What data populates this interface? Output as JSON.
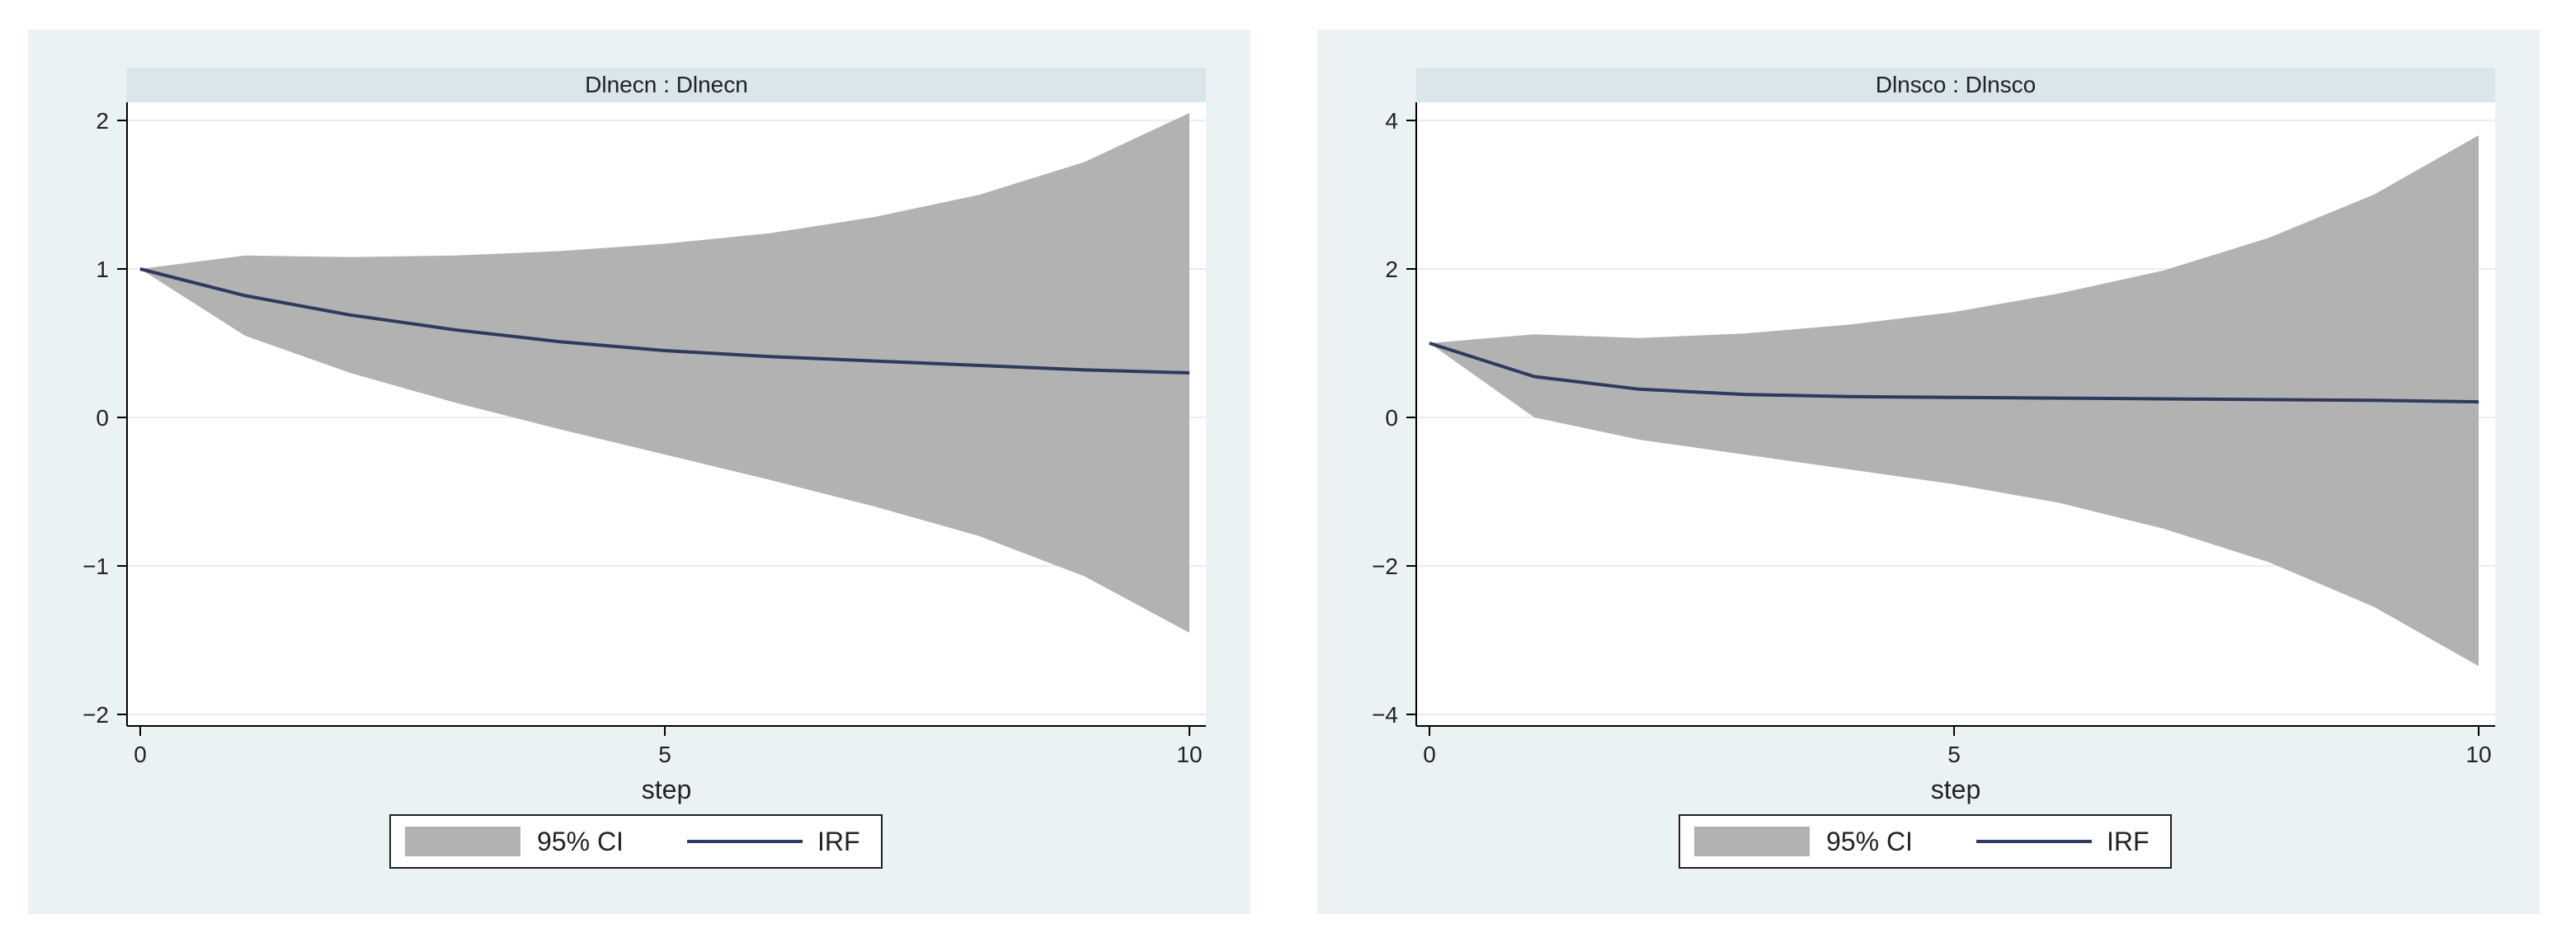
{
  "chart_data": [
    {
      "type": "area",
      "title": "Dlnecn : Dlnecn",
      "xlabel": "step",
      "ylabel": "",
      "xlim": [
        0,
        10
      ],
      "ylim": [
        -2,
        2
      ],
      "x_ticks": [
        "0",
        "5",
        "10"
      ],
      "y_ticks": [
        "2",
        "1",
        "0",
        "−1",
        "−2"
      ],
      "x": [
        0,
        1,
        2,
        3,
        4,
        5,
        6,
        7,
        8,
        9,
        10
      ],
      "series": [
        {
          "name": "95% CI",
          "kind": "band",
          "lower": [
            1.0,
            0.55,
            0.3,
            0.1,
            -0.08,
            -0.25,
            -0.42,
            -0.6,
            -0.8,
            -1.07,
            -1.45
          ],
          "upper": [
            1.0,
            1.09,
            1.08,
            1.09,
            1.12,
            1.17,
            1.24,
            1.35,
            1.5,
            1.72,
            2.05
          ]
        },
        {
          "name": "IRF",
          "kind": "line",
          "values": [
            1.0,
            0.82,
            0.69,
            0.59,
            0.51,
            0.45,
            0.41,
            0.38,
            0.35,
            0.32,
            0.3
          ]
        }
      ],
      "legend": {
        "position": "bottom",
        "items": [
          "95% CI",
          "IRF"
        ]
      },
      "grid": true
    },
    {
      "type": "area",
      "title": "Dlnsco : Dlnsco",
      "xlabel": "step",
      "ylabel": "",
      "xlim": [
        0,
        10
      ],
      "ylim": [
        -4,
        4
      ],
      "x_ticks": [
        "0",
        "5",
        "10"
      ],
      "y_ticks": [
        "4",
        "2",
        "0",
        "−2",
        "−4"
      ],
      "x": [
        0,
        1,
        2,
        3,
        4,
        5,
        6,
        7,
        8,
        9,
        10
      ],
      "series": [
        {
          "name": "95% CI",
          "kind": "band",
          "lower": [
            1.0,
            0.0,
            -0.3,
            -0.5,
            -0.7,
            -0.9,
            -1.15,
            -1.5,
            -1.95,
            -2.55,
            -3.35
          ],
          "upper": [
            1.0,
            1.12,
            1.07,
            1.13,
            1.25,
            1.42,
            1.67,
            1.98,
            2.42,
            3.0,
            3.8
          ]
        },
        {
          "name": "IRF",
          "kind": "line",
          "values": [
            1.0,
            0.55,
            0.38,
            0.31,
            0.28,
            0.27,
            0.26,
            0.25,
            0.24,
            0.23,
            0.21
          ]
        }
      ],
      "legend": {
        "position": "bottom",
        "items": [
          "95% CI",
          "IRF"
        ]
      },
      "grid": true
    }
  ],
  "colors": {
    "background": "#eaf2f4",
    "plot_bg": "#ffffff",
    "header_bg": "#d9e6eb",
    "band": "#b2b2b2",
    "line": "#2e3a5f",
    "grid": "#e6eef1",
    "axis": "#000000"
  }
}
